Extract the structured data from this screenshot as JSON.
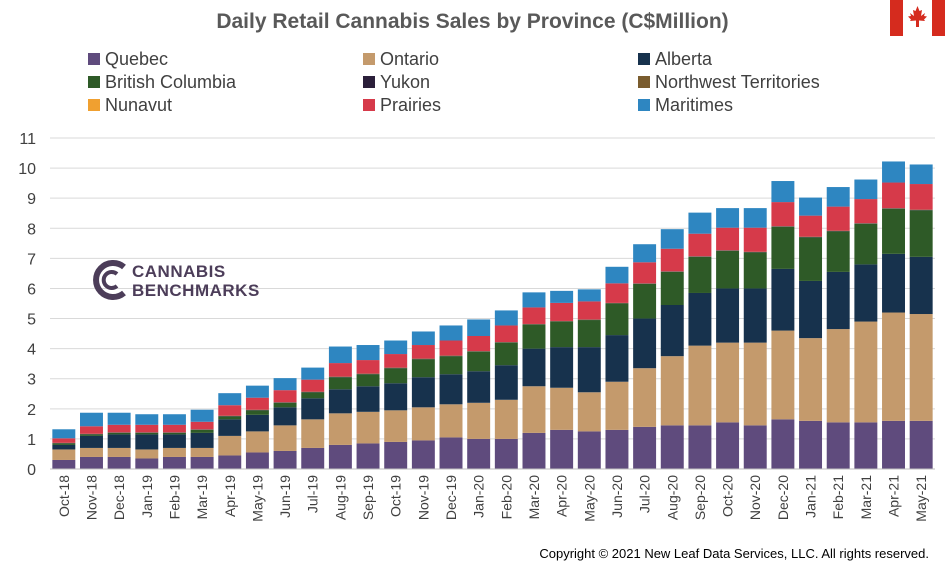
{
  "chart_data": {
    "type": "bar",
    "stacked": true,
    "title": "Daily Retail Cannabis Sales by Province (C$Million)",
    "xlabel": "",
    "ylabel": "",
    "ylim": [
      0,
      11
    ],
    "yticks": [
      0,
      1,
      2,
      3,
      4,
      5,
      6,
      7,
      8,
      9,
      10,
      11
    ],
    "grid": true,
    "legend_position": "top",
    "categories": [
      "Oct-18",
      "Nov-18",
      "Dec-18",
      "Jan-19",
      "Feb-19",
      "Mar-19",
      "Apr-19",
      "May-19",
      "Jun-19",
      "Jul-19",
      "Aug-19",
      "Sep-19",
      "Oct-19",
      "Nov-19",
      "Dec-19",
      "Jan-20",
      "Feb-20",
      "Mar-20",
      "Apr-20",
      "May-20",
      "Jun-20",
      "Jul-20",
      "Aug-20",
      "Sep-20",
      "Oct-20",
      "Nov-20",
      "Dec-20",
      "Jan-21",
      "Feb-21",
      "Mar-21",
      "Apr-21",
      "May-21"
    ],
    "series": [
      {
        "name": "Quebec",
        "color": "#5f4b7d",
        "values": [
          0.3,
          0.4,
          0.4,
          0.35,
          0.4,
          0.4,
          0.45,
          0.55,
          0.6,
          0.7,
          0.8,
          0.85,
          0.9,
          0.95,
          1.05,
          1.0,
          1.0,
          1.2,
          1.3,
          1.25,
          1.3,
          1.4,
          1.45,
          1.45,
          1.55,
          1.45,
          1.65,
          1.6,
          1.55,
          1.55,
          1.6,
          1.6
        ]
      },
      {
        "name": "Ontario",
        "color": "#c49a6c",
        "values": [
          0.35,
          0.3,
          0.3,
          0.3,
          0.3,
          0.3,
          0.65,
          0.7,
          0.85,
          0.95,
          1.05,
          1.05,
          1.05,
          1.1,
          1.1,
          1.2,
          1.3,
          1.55,
          1.4,
          1.3,
          1.6,
          1.95,
          2.3,
          2.65,
          2.65,
          2.75,
          2.95,
          2.75,
          3.1,
          3.35,
          3.6,
          3.55
        ]
      },
      {
        "name": "Alberta",
        "color": "#17324d",
        "values": [
          0.15,
          0.4,
          0.45,
          0.5,
          0.45,
          0.5,
          0.55,
          0.55,
          0.6,
          0.7,
          0.8,
          0.85,
          0.9,
          1.0,
          1.0,
          1.05,
          1.15,
          1.25,
          1.35,
          1.5,
          1.55,
          1.65,
          1.7,
          1.75,
          1.8,
          1.8,
          2.05,
          1.9,
          1.9,
          1.9,
          1.95,
          1.9
        ]
      },
      {
        "name": "British Columbia",
        "color": "#2e5a27",
        "values": [
          0.05,
          0.05,
          0.05,
          0.05,
          0.05,
          0.1,
          0.1,
          0.15,
          0.15,
          0.2,
          0.4,
          0.4,
          0.5,
          0.6,
          0.6,
          0.65,
          0.75,
          0.8,
          0.85,
          0.9,
          1.05,
          1.15,
          1.1,
          1.2,
          1.25,
          1.2,
          1.4,
          1.45,
          1.35,
          1.35,
          1.5,
          1.55
        ]
      },
      {
        "name": "Yukon",
        "color": "#2b1f3a",
        "values": [
          0.01,
          0.01,
          0.01,
          0.01,
          0.01,
          0.01,
          0.01,
          0.01,
          0.01,
          0.01,
          0.01,
          0.01,
          0.01,
          0.01,
          0.01,
          0.01,
          0.01,
          0.01,
          0.01,
          0.01,
          0.01,
          0.01,
          0.01,
          0.01,
          0.01,
          0.01,
          0.01,
          0.01,
          0.01,
          0.01,
          0.01,
          0.01
        ]
      },
      {
        "name": "Northwest Territories",
        "color": "#7a5c2e",
        "values": [
          0.01,
          0.01,
          0.01,
          0.01,
          0.01,
          0.01,
          0.01,
          0.01,
          0.01,
          0.01,
          0.01,
          0.01,
          0.01,
          0.01,
          0.01,
          0.01,
          0.01,
          0.01,
          0.01,
          0.01,
          0.01,
          0.01,
          0.01,
          0.01,
          0.01,
          0.01,
          0.01,
          0.01,
          0.01,
          0.01,
          0.01,
          0.01
        ]
      },
      {
        "name": "Nunavut",
        "color": "#f0a030",
        "values": [
          0,
          0,
          0,
          0,
          0,
          0,
          0,
          0,
          0,
          0,
          0,
          0,
          0,
          0,
          0,
          0,
          0,
          0,
          0,
          0,
          0,
          0,
          0,
          0,
          0,
          0,
          0,
          0,
          0,
          0,
          0,
          0
        ]
      },
      {
        "name": "Prairies",
        "color": "#d63a4a",
        "values": [
          0.15,
          0.25,
          0.25,
          0.25,
          0.25,
          0.25,
          0.35,
          0.4,
          0.4,
          0.4,
          0.45,
          0.45,
          0.45,
          0.45,
          0.5,
          0.5,
          0.55,
          0.55,
          0.6,
          0.6,
          0.65,
          0.7,
          0.75,
          0.75,
          0.75,
          0.8,
          0.8,
          0.7,
          0.8,
          0.8,
          0.85,
          0.85
        ]
      },
      {
        "name": "Maritimes",
        "color": "#2e86c1",
        "values": [
          0.3,
          0.45,
          0.4,
          0.35,
          0.35,
          0.4,
          0.4,
          0.4,
          0.4,
          0.4,
          0.55,
          0.5,
          0.45,
          0.45,
          0.5,
          0.55,
          0.5,
          0.5,
          0.4,
          0.4,
          0.55,
          0.6,
          0.65,
          0.7,
          0.65,
          0.65,
          0.7,
          0.6,
          0.65,
          0.65,
          0.7,
          0.65
        ]
      }
    ]
  },
  "footer": {
    "copyright": "Copyright  © 2021 New Leaf Data Services, LLC. All rights reserved."
  },
  "logo": {
    "line1": "CANNABIS",
    "line2": "BENCHMARKS"
  },
  "flag": {
    "icon": "canada-flag-icon"
  }
}
